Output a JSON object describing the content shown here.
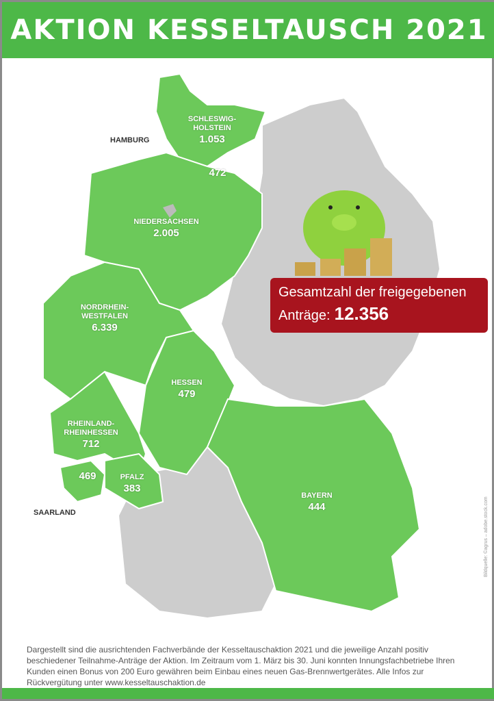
{
  "header": {
    "title": "AKTION KESSELTAUSCH 2021"
  },
  "colors": {
    "green": "#4db848",
    "region_green": "#6cc95a",
    "grey": "#c9c9c9",
    "badge": "#a8141e"
  },
  "regions": [
    {
      "name": "SCHLESWIG-HOLSTEIN",
      "count": "1.053"
    },
    {
      "name": "HAMBURG",
      "count": "472"
    },
    {
      "name": "NIEDERSACHSEN",
      "count": "2.005"
    },
    {
      "name": "NORDRHEIN-WESTFALEN",
      "count": "6.339"
    },
    {
      "name": "HESSEN",
      "count": "479"
    },
    {
      "name": "RHEINLAND-RHEINHESSEN",
      "count": "712"
    },
    {
      "name": "SAARLAND",
      "count": "469"
    },
    {
      "name": "PFALZ",
      "count": "383"
    },
    {
      "name": "BAYERN",
      "count": "444"
    }
  ],
  "labels": {
    "sh1": "SCHLESWIG-",
    "sh2": "HOLSTEIN",
    "nrw1": "NORDRHEIN-",
    "nrw2": "WESTFALEN",
    "rp1": "RHEINLAND-",
    "rp2": "RHEINHESSEN"
  },
  "badge": {
    "line1": "Gesamtzahl der freigegebenen",
    "line2": "Anträge:",
    "total": "12.356"
  },
  "illustration": "piggy-bank-with-coins",
  "credit": "Bildquelle: ©agrus – adobe.stock.com",
  "footer": {
    "text": "Dargestellt sind die ausrichtenden Fachverbände der Kesseltauschaktion 2021 und die jeweilige Anzahl positiv beschiedener Teilnahme-Anträge der Aktion. Im Zeitraum vom 1. März bis 30. Juni konnten Innungsfachbetriebe Ihren Kunden einen Bonus von 200 Euro gewähren beim Einbau eines neuen Gas-Brennwertgerätes. Alle Infos zur Rückvergütung unter www.kesseltauschaktion.de"
  }
}
